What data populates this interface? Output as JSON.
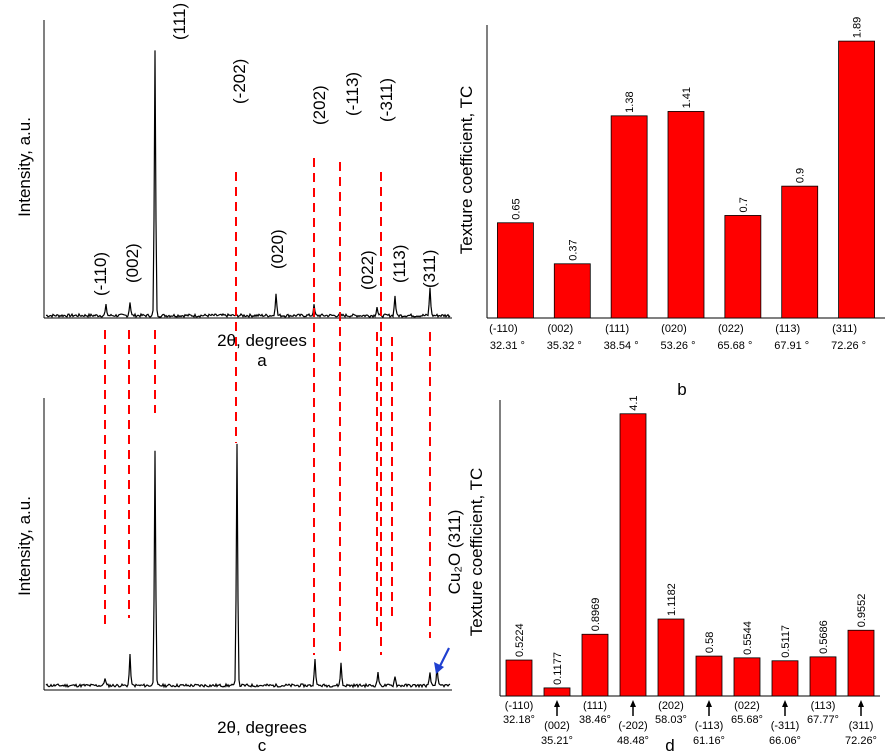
{
  "chart_data": [
    {
      "panel": "a",
      "type": "line",
      "xlabel": "2θ, degrees",
      "ylabel": "Intensity, a.u.",
      "peak_labels": [
        "(-110)",
        "(002)",
        "(111)",
        "(020)",
        "(022)",
        "(113)",
        "(311)",
        "(-202)",
        "(202)",
        "(-113)",
        "(-311)"
      ]
    },
    {
      "panel": "b",
      "type": "bar",
      "ylabel": "Texture coefficient, TC",
      "categories": [
        "(-110)",
        "(002)",
        "(111)",
        "(020)",
        "(022)",
        "(113)",
        "(311)"
      ],
      "angles": [
        "32.31 °",
        "35.32 °",
        "38.54 °",
        "53.26 °",
        "65.68 °",
        "67.91 °",
        "72.26 °"
      ],
      "values": [
        0.65,
        0.37,
        1.38,
        1.41,
        0.7,
        0.9,
        1.89
      ],
      "value_labels": [
        "0.65",
        "0.37",
        "1.38",
        "1.41",
        "0.7",
        "0.9",
        "1.89"
      ],
      "ylim": [
        0,
        2.0
      ],
      "color": "#ff0000"
    },
    {
      "panel": "c",
      "type": "line",
      "xlabel": "2θ, degrees",
      "ylabel": "Intensity, a.u."
    },
    {
      "panel": "d",
      "type": "bar",
      "ylabel": "Texture coefficient, TC",
      "annotation": "Cu₂O (311)",
      "categories": [
        "(-110)",
        "(002)",
        "(111)",
        "(-202)",
        "(202)",
        "(-113)",
        "(022)",
        "(-311)",
        "(113)",
        "(311)"
      ],
      "angles": [
        "32.18°",
        "35.21°",
        "38.46°",
        "48.48°",
        "58.03°",
        "61.16°",
        "65.68°",
        "66.06°",
        "67.77°",
        "72.26°"
      ],
      "values": [
        0.5224,
        0.1177,
        0.8969,
        4.1,
        1.1182,
        0.58,
        0.5544,
        0.5117,
        0.5686,
        0.9552
      ],
      "value_labels": [
        "0.5224",
        "0.1177",
        "0.8969",
        "4.1",
        "1.1182",
        "0.58",
        "0.5544",
        "0.5117",
        "0.5686",
        "0.9552"
      ],
      "ylim": [
        0,
        4.3
      ],
      "color": "#ff0000"
    }
  ],
  "panel_letters": {
    "a": "a",
    "b": "b",
    "c": "c",
    "d": "d"
  }
}
